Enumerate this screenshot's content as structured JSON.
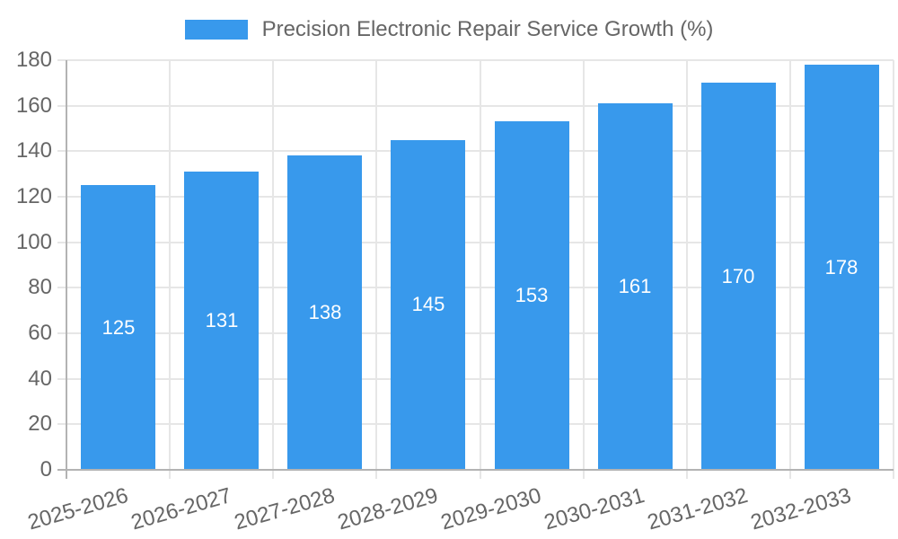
{
  "legend": {
    "label": "Precision Electronic Repair Service Growth (%)"
  },
  "chart_data": {
    "type": "bar",
    "title": "Precision Electronic Repair Service Growth (%)",
    "categories": [
      "2025-2026",
      "2026-2027",
      "2027-2028",
      "2028-2029",
      "2029-2030",
      "2030-2031",
      "2031-2032",
      "2032-2033"
    ],
    "values": [
      125,
      131,
      138,
      145,
      153,
      161,
      170,
      178
    ],
    "xlabel": "",
    "ylabel": "",
    "ylim": [
      0,
      180
    ],
    "yticks": [
      0,
      20,
      40,
      60,
      80,
      100,
      120,
      140,
      160,
      180
    ],
    "grid": true,
    "legend_position": "top",
    "bar_color": "#3899EC",
    "value_label_color": "#ffffff",
    "axis_text_color": "#666666",
    "gridline_color": "#e6e6e6",
    "axis_line_color": "#b3b3b3",
    "background_color": "#ffffff"
  }
}
